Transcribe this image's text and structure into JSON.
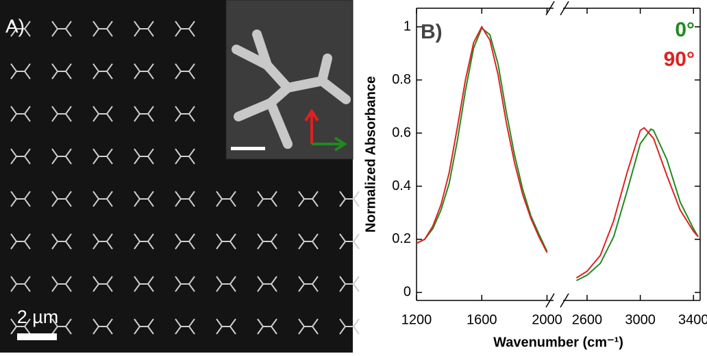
{
  "panel_a": {
    "label": "A)",
    "scale_bar": "2 µm"
  },
  "chart_data": {
    "type": "line",
    "panel_label": "B)",
    "xlabel": "Wavenumber (cm⁻¹)",
    "ylabel": "Normalized Absorbance",
    "xlim": [
      [
        1200,
        2040
      ],
      [
        2420,
        3450
      ]
    ],
    "xticks": [
      [
        1200,
        1600,
        2000
      ],
      [
        2600,
        3000,
        3400
      ]
    ],
    "ylim": [
      -0.03,
      1.07
    ],
    "yticks": [
      0,
      0.2,
      0.4,
      0.6,
      0.8,
      1
    ],
    "legend": "upper right",
    "series": [
      {
        "name": "0°",
        "color": "#1f8a1f",
        "x": [
          1200,
          1250,
          1300,
          1350,
          1400,
          1450,
          1500,
          1550,
          1600,
          1650,
          1700,
          1750,
          1800,
          1850,
          1900,
          1950,
          2000,
          2200,
          2520,
          2600,
          2700,
          2800,
          2900,
          3000,
          3080,
          3100,
          3200,
          3300,
          3400,
          3435
        ],
        "values": [
          0.185,
          0.2,
          0.24,
          0.31,
          0.41,
          0.57,
          0.76,
          0.92,
          0.995,
          0.97,
          0.86,
          0.68,
          0.52,
          0.39,
          0.29,
          0.22,
          0.155,
          null,
          0.045,
          0.065,
          0.11,
          0.21,
          0.38,
          0.56,
          0.615,
          0.61,
          0.5,
          0.34,
          0.24,
          0.21
        ]
      },
      {
        "name": "90°",
        "color": "#e02020",
        "x": [
          1200,
          1250,
          1300,
          1350,
          1400,
          1450,
          1500,
          1550,
          1600,
          1650,
          1700,
          1750,
          1800,
          1850,
          1900,
          1950,
          2000,
          2200,
          2520,
          2600,
          2700,
          2800,
          2900,
          3000,
          3030,
          3100,
          3200,
          3300,
          3400,
          3435
        ],
        "values": [
          0.185,
          0.2,
          0.25,
          0.33,
          0.45,
          0.62,
          0.8,
          0.94,
          1.0,
          0.95,
          0.82,
          0.64,
          0.49,
          0.37,
          0.28,
          0.21,
          0.15,
          null,
          0.055,
          0.08,
          0.14,
          0.27,
          0.45,
          0.61,
          0.62,
          0.58,
          0.44,
          0.31,
          0.23,
          0.21
        ]
      }
    ]
  }
}
